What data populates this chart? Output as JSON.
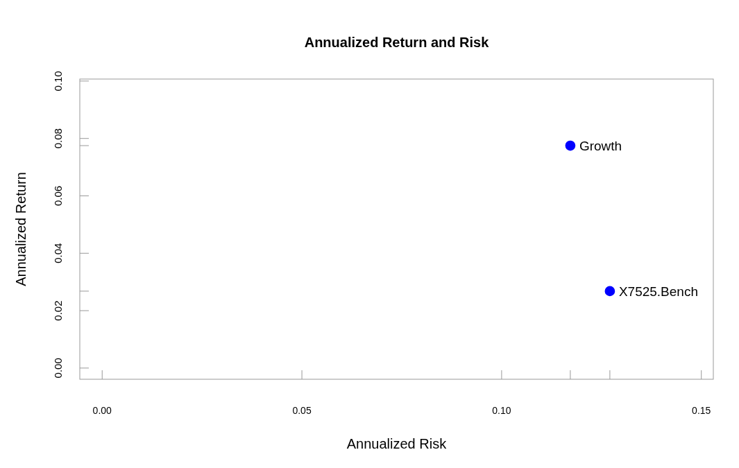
{
  "chart_data": {
    "type": "scatter",
    "title": "Annualized Return and Risk",
    "xlabel": "Annualized Risk",
    "ylabel": "Annualized Return",
    "series": [
      {
        "name": "Growth",
        "color": "#0000ff",
        "x": [
          0.1172
        ],
        "values": [
          0.0775
        ]
      },
      {
        "name": "X7525.Bench",
        "color": "#0000ff",
        "x": [
          0.1271
        ],
        "values": [
          0.0268
        ]
      }
    ],
    "xlim": [
      -0.0056,
      0.153
    ],
    "ylim": [
      -0.0039,
      0.1007
    ],
    "xticks": [
      {
        "value": 0,
        "label": "0.00"
      },
      {
        "value": 0.05,
        "label": "0.05"
      },
      {
        "value": 0.1,
        "label": "0.10"
      },
      {
        "value": 0.15,
        "label": "0.15"
      },
      {
        "value": 0.1172,
        "label": null
      },
      {
        "value": 0.1271,
        "label": null
      }
    ],
    "yticks": [
      {
        "value": 0,
        "label": "0.00"
      },
      {
        "value": 0.02,
        "label": "0.02"
      },
      {
        "value": 0.04,
        "label": "0.04"
      },
      {
        "value": 0.06,
        "label": "0.06"
      },
      {
        "value": 0.08,
        "label": "0.08"
      },
      {
        "value": 0.1,
        "label": "0.10"
      },
      {
        "value": 0.0775,
        "label": null
      },
      {
        "value": 0.0268,
        "label": null
      }
    ],
    "marker": "circle",
    "grid": false
  }
}
